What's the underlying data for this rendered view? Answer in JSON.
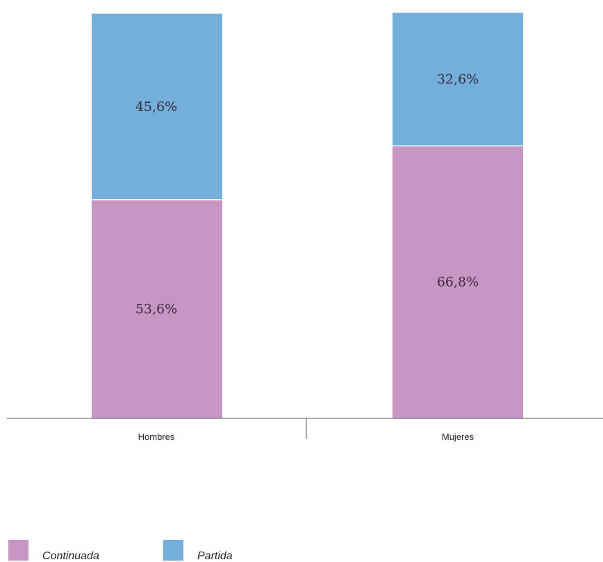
{
  "chart_data": {
    "type": "bar",
    "stacked": true,
    "categories": [
      "Hombres",
      "Mujeres"
    ],
    "series": [
      {
        "name": "Continuada",
        "values": [
          53.6,
          66.8
        ],
        "labels": [
          "53,6%",
          "66,8%"
        ],
        "color": "#c796c5"
      },
      {
        "name": "Partida",
        "values": [
          45.6,
          32.6
        ],
        "labels": [
          "45,6%",
          "32,6%"
        ],
        "color": "#74aedb"
      }
    ],
    "ylim": [
      0,
      100
    ],
    "grid": false,
    "legend": "bottom-left",
    "title": "",
    "xlabel": "",
    "ylabel": ""
  }
}
